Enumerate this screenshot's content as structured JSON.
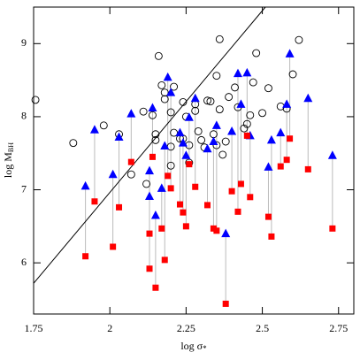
{
  "chart_data": {
    "type": "scatter",
    "x_label": {
      "main": "log σ",
      "sub": "*"
    },
    "y_label": {
      "main": "log M",
      "sub": "BH"
    },
    "xlim": [
      1.75,
      2.8
    ],
    "ylim": [
      5.3,
      9.5
    ],
    "xticks": [
      1.75,
      2,
      2.25,
      2.5,
      2.75
    ],
    "yticks": [
      6,
      7,
      8,
      9
    ],
    "line": {
      "color": "#000000",
      "x": [
        1.75,
        2.51
      ],
      "y": [
        5.72,
        9.5
      ]
    },
    "series": [
      {
        "marker": "circle",
        "color": "#000000",
        "x": [
          1.756,
          1.88,
          1.98,
          2.03,
          2.07,
          2.11,
          2.12,
          2.16,
          2.14,
          2.15,
          2.15,
          2.17,
          2.18,
          2.18,
          2.2,
          2.2,
          2.2,
          2.21,
          2.21,
          2.23,
          2.24,
          2.25,
          2.24,
          2.26,
          2.26,
          2.28,
          2.28,
          2.29,
          2.3,
          2.31,
          2.32,
          2.33,
          2.35,
          2.34,
          2.35,
          2.36,
          2.36,
          2.37,
          2.38,
          2.39,
          2.41,
          2.42,
          2.44,
          2.45,
          2.46,
          2.47,
          2.48,
          2.5,
          2.52,
          2.56,
          2.58,
          2.6,
          2.62
        ],
        "values": [
          8.23,
          7.64,
          7.88,
          7.76,
          7.21,
          8.07,
          7.08,
          8.83,
          8.02,
          7.68,
          7.76,
          8.43,
          8.33,
          8.24,
          8.06,
          7.59,
          7.33,
          8.41,
          7.78,
          7.7,
          8.2,
          8.0,
          7.7,
          7.61,
          7.37,
          8.17,
          8.08,
          7.8,
          7.68,
          7.58,
          8.22,
          8.21,
          8.56,
          7.76,
          7.61,
          9.06,
          8.1,
          7.48,
          7.66,
          8.27,
          8.4,
          8.13,
          7.84,
          7.9,
          8.02,
          8.47,
          8.87,
          8.05,
          8.39,
          8.14,
          8.11,
          8.58,
          9.05
        ]
      },
      {
        "marker": "triangle",
        "color": "#0000ff",
        "x": [
          1.92,
          1.95,
          2.01,
          2.03,
          2.07,
          2.13,
          2.13,
          2.14,
          2.15,
          2.17,
          2.18,
          2.19,
          2.2,
          2.23,
          2.24,
          2.25,
          2.26,
          2.28,
          2.32,
          2.34,
          2.35,
          2.38,
          2.4,
          2.42,
          2.43,
          2.45,
          2.46,
          2.52,
          2.53,
          2.56,
          2.58,
          2.59,
          2.65,
          2.73
        ],
        "values": [
          7.05,
          7.82,
          7.21,
          7.72,
          8.04,
          6.91,
          7.26,
          8.12,
          6.65,
          7.02,
          7.6,
          8.54,
          8.33,
          7.78,
          7.64,
          7.47,
          7.99,
          8.25,
          7.56,
          7.66,
          7.88,
          6.4,
          7.8,
          8.59,
          8.17,
          8.6,
          7.74,
          7.31,
          7.68,
          7.78,
          8.17,
          8.86,
          8.25,
          7.47
        ]
      },
      {
        "marker": "square",
        "color": "#ff0000",
        "x": [
          1.92,
          1.95,
          2.01,
          2.03,
          2.07,
          2.13,
          2.13,
          2.14,
          2.15,
          2.17,
          2.18,
          2.19,
          2.2,
          2.23,
          2.24,
          2.25,
          2.26,
          2.28,
          2.32,
          2.34,
          2.35,
          2.38,
          2.4,
          2.42,
          2.43,
          2.45,
          2.46,
          2.52,
          2.53,
          2.56,
          2.58,
          2.59,
          2.65,
          2.73
        ],
        "values": [
          6.09,
          6.84,
          6.22,
          6.76,
          7.38,
          6.4,
          5.92,
          7.45,
          5.66,
          6.47,
          6.04,
          7.19,
          7.02,
          6.8,
          6.69,
          6.5,
          7.35,
          7.04,
          6.79,
          6.47,
          6.44,
          5.44,
          6.98,
          6.7,
          7.08,
          7.74,
          6.9,
          6.63,
          6.36,
          7.32,
          7.41,
          7.7,
          7.28,
          6.47
        ]
      }
    ]
  }
}
